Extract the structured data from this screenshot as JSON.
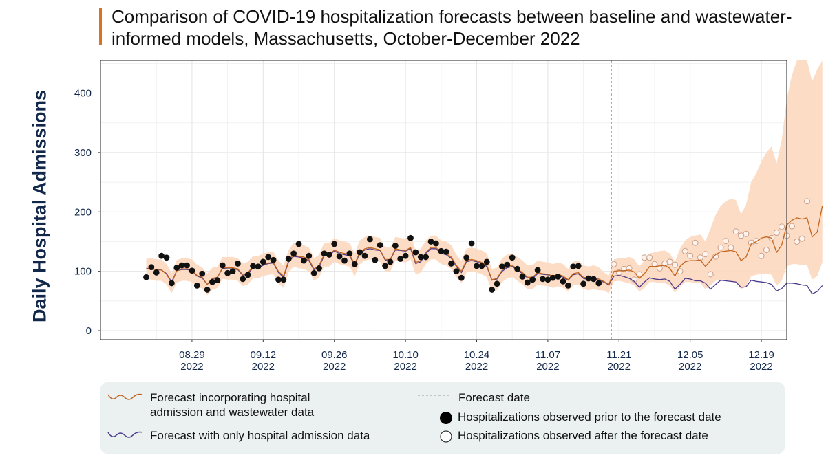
{
  "title": "Comparison of COVID-19 hospitalization forecasts between baseline and wastewater-informed models, Massachusetts, October-December 2022",
  "colors": {
    "accent": "#d9731f",
    "wastewater_line": "#c5641c",
    "baseline_line": "#4b3a8c",
    "ribbon": "#fcd8bf",
    "observed_prior": "#111111",
    "observed_after_stroke": "#c9a08a",
    "axis_text": "#11284a",
    "legend_bg": "#eaf1f0"
  },
  "chart_data": {
    "type": "line",
    "title": "Comparison of COVID-19 hospitalization forecasts between baseline and wastewater-informed models, Massachusetts, October-December 2022",
    "xlabel": "",
    "ylabel": "Daily Hospital Admissions",
    "ylim": [
      -15,
      455
    ],
    "yticks": [
      0,
      100,
      200,
      300,
      400
    ],
    "x_range_days": [
      -9,
      126
    ],
    "start_date": "2022-08-20",
    "xticks": [
      {
        "day": 9,
        "line1": "08.29",
        "line2": "2022"
      },
      {
        "day": 23,
        "line1": "09.12",
        "line2": "2022"
      },
      {
        "day": 37,
        "line1": "09.26",
        "line2": "2022"
      },
      {
        "day": 51,
        "line1": "10.10",
        "line2": "2022"
      },
      {
        "day": 65,
        "line1": "10.24",
        "line2": "2022"
      },
      {
        "day": 79,
        "line1": "11.07",
        "line2": "2022"
      },
      {
        "day": 93,
        "line1": "11.21",
        "line2": "2022"
      },
      {
        "day": 107,
        "line1": "12.05",
        "line2": "2022"
      },
      {
        "day": 121,
        "line1": "12.19",
        "line2": "2022"
      }
    ],
    "grid": true,
    "forecast_day": 91.5,
    "observed_prior": [
      90,
      107,
      98,
      126,
      123,
      80,
      106,
      110,
      110,
      101,
      76,
      96,
      69,
      82,
      85,
      110,
      97,
      100,
      113,
      87,
      94,
      109,
      108,
      116,
      124,
      119,
      86,
      86,
      121,
      130,
      146,
      118,
      126,
      97,
      105,
      130,
      128,
      146,
      125,
      118,
      130,
      112,
      132,
      126,
      154,
      119,
      144,
      109,
      116,
      143,
      121,
      126,
      156,
      132,
      124,
      124,
      150,
      147,
      134,
      133,
      113,
      100,
      89,
      123,
      147,
      109,
      109,
      116,
      69,
      79,
      108,
      111,
      123,
      104,
      91,
      81,
      86,
      102,
      87,
      86,
      89,
      91,
      83,
      76,
      108,
      109,
      79,
      88,
      87,
      80
    ],
    "observed_after": [
      112,
      98,
      104,
      105,
      86,
      95,
      123,
      123,
      112,
      105,
      113,
      116,
      111,
      100,
      134,
      126,
      148,
      123,
      129,
      95,
      125,
      140,
      151,
      140,
      167,
      160,
      163,
      148,
      151,
      126,
      136,
      156,
      165,
      175,
      160,
      176,
      150,
      155,
      218
    ],
    "wastewater_forecast": [
      104,
      105,
      102,
      102,
      95,
      80,
      101,
      104,
      104,
      102,
      93,
      90,
      78,
      88,
      90,
      106,
      106,
      106,
      104,
      94,
      98,
      108,
      108,
      112,
      114,
      115,
      100,
      92,
      118,
      128,
      125,
      124,
      120,
      104,
      110,
      128,
      128,
      136,
      132,
      130,
      128,
      112,
      132,
      138,
      140,
      138,
      136,
      120,
      120,
      138,
      136,
      135,
      140,
      115,
      118,
      132,
      140,
      140,
      132,
      130,
      124,
      110,
      100,
      118,
      120,
      118,
      115,
      110,
      86,
      88,
      102,
      108,
      110,
      104,
      98,
      90,
      90,
      98,
      96,
      95,
      92,
      95,
      92,
      86,
      96,
      98,
      90,
      88,
      90,
      87,
      83,
      78,
      100,
      101,
      101,
      102,
      99,
      88,
      96,
      108,
      108,
      109,
      110,
      105,
      92,
      108,
      116,
      118,
      118,
      119,
      108,
      118,
      128,
      133,
      134,
      135,
      133,
      118,
      124,
      146,
      150,
      156,
      158,
      156,
      132,
      144,
      178,
      186,
      190,
      188,
      190,
      158,
      166,
      210
    ],
    "baseline_forecast": [
      105,
      104,
      103,
      102,
      96,
      82,
      101,
      103,
      103,
      101,
      92,
      89,
      78,
      87,
      90,
      105,
      104,
      104,
      103,
      93,
      96,
      106,
      106,
      110,
      113,
      114,
      98,
      90,
      116,
      125,
      124,
      122,
      118,
      102,
      108,
      126,
      127,
      134,
      130,
      128,
      126,
      111,
      130,
      136,
      138,
      136,
      135,
      119,
      119,
      136,
      135,
      134,
      138,
      113,
      116,
      130,
      138,
      138,
      130,
      128,
      122,
      108,
      98,
      116,
      118,
      116,
      113,
      108,
      85,
      87,
      100,
      106,
      108,
      102,
      96,
      89,
      88,
      96,
      95,
      94,
      91,
      93,
      90,
      85,
      94,
      96,
      88,
      86,
      88,
      85,
      82,
      77,
      92,
      93,
      91,
      88,
      83,
      73,
      82,
      89,
      87,
      86,
      87,
      83,
      70,
      78,
      88,
      87,
      84,
      84,
      80,
      70,
      78,
      85,
      84,
      83,
      82,
      73,
      74,
      85,
      83,
      82,
      81,
      78,
      67,
      71,
      80,
      80,
      79,
      77,
      76,
      62,
      66,
      76
    ],
    "ribbon_lower": [
      87,
      86,
      84,
      84,
      78,
      63,
      81,
      84,
      84,
      82,
      74,
      71,
      60,
      69,
      72,
      87,
      86,
      86,
      84,
      75,
      78,
      88,
      88,
      92,
      94,
      95,
      80,
      72,
      98,
      108,
      105,
      104,
      100,
      84,
      90,
      108,
      108,
      116,
      112,
      110,
      108,
      92,
      112,
      118,
      120,
      118,
      116,
      100,
      100,
      118,
      116,
      115,
      120,
      95,
      98,
      112,
      120,
      120,
      112,
      110,
      104,
      90,
      80,
      98,
      100,
      98,
      95,
      90,
      66,
      68,
      82,
      88,
      90,
      84,
      78,
      70,
      70,
      78,
      76,
      75,
      72,
      75,
      72,
      66,
      76,
      78,
      70,
      68,
      70,
      68,
      68,
      63,
      83,
      84,
      82,
      80,
      76,
      66,
      72,
      82,
      82,
      80,
      80,
      76,
      64,
      74,
      82,
      82,
      80,
      80,
      70,
      76,
      84,
      86,
      86,
      84,
      82,
      70,
      74,
      92,
      94,
      96,
      96,
      94,
      76,
      84,
      108,
      112,
      112,
      110,
      110,
      86,
      92,
      115
    ],
    "ribbon_upper": [
      121,
      122,
      120,
      120,
      112,
      97,
      119,
      122,
      122,
      120,
      111,
      107,
      96,
      106,
      108,
      124,
      124,
      124,
      122,
      113,
      116,
      126,
      126,
      130,
      132,
      133,
      118,
      110,
      136,
      148,
      145,
      144,
      140,
      122,
      128,
      148,
      148,
      156,
      152,
      150,
      148,
      130,
      152,
      158,
      160,
      158,
      156,
      140,
      140,
      158,
      156,
      155,
      162,
      135,
      138,
      152,
      160,
      160,
      152,
      150,
      144,
      128,
      118,
      138,
      140,
      138,
      135,
      130,
      104,
      106,
      122,
      128,
      130,
      124,
      118,
      110,
      110,
      118,
      116,
      115,
      112,
      115,
      112,
      104,
      116,
      118,
      110,
      108,
      110,
      107,
      98,
      93,
      120,
      122,
      122,
      124,
      120,
      108,
      118,
      130,
      132,
      134,
      135,
      130,
      116,
      138,
      152,
      158,
      160,
      162,
      150,
      172,
      195,
      210,
      218,
      222,
      220,
      196,
      212,
      250,
      265,
      285,
      300,
      310,
      282,
      320,
      390,
      430,
      455,
      455,
      455,
      420,
      440,
      455
    ]
  },
  "legend": {
    "items": [
      {
        "line1": "Forecast incorporating hospital",
        "line2": "admission and wastewater data"
      },
      {
        "line1": "Forecast with only hospital admission data"
      },
      {
        "line1": "Forecast date"
      },
      {
        "line1": "Hospitalizations observed prior to the forecast date"
      },
      {
        "line1": "Hospitalizations observed after the forecast date"
      }
    ]
  }
}
